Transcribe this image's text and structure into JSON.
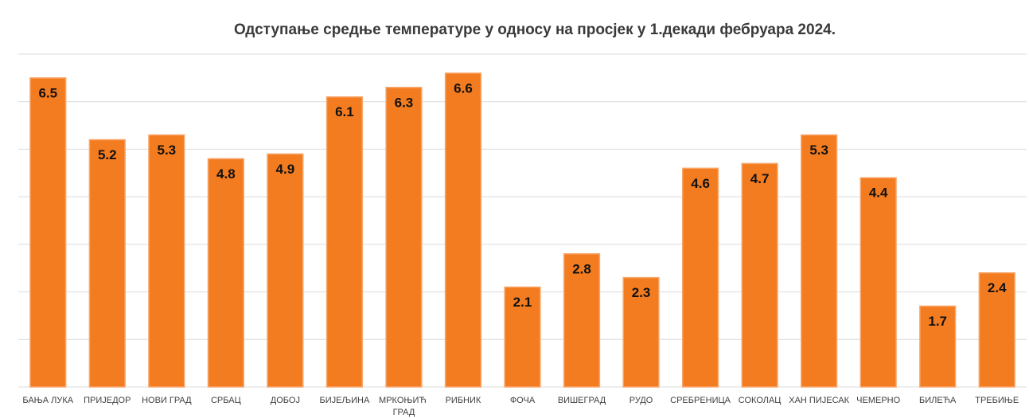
{
  "chart_data": {
    "type": "bar",
    "title": "Одступање средње температуре у односу на просјек у 1.декади фебруара 2024.",
    "categories": [
      "БАЊА ЛУКА",
      "ПРИЈЕДОР",
      "НОВИ ГРАД",
      "СРБАЦ",
      "ДОБОЈ",
      "БИЈЕЉИНА",
      "МРКОЊИЋ ГРАД",
      "РИБНИК",
      "ФОЧА",
      "ВИШЕГРАД",
      "РУДО",
      "СРЕБРЕНИЦА",
      "СОКОЛАЦ",
      "ХАН ПИЈЕСАК",
      "ЧЕМЕРНО",
      "БИЛЕЋА",
      "ТРЕБИЊЕ"
    ],
    "values": [
      6.5,
      5.2,
      5.3,
      4.8,
      4.9,
      6.1,
      6.3,
      6.6,
      2.1,
      2.8,
      2.3,
      4.6,
      4.7,
      5.3,
      4.4,
      1.7,
      2.4
    ],
    "color": "#f47c20",
    "ylim": [
      0,
      7
    ],
    "yticks": [
      0,
      1,
      2,
      3,
      4,
      5,
      6,
      7
    ],
    "grid": true
  }
}
